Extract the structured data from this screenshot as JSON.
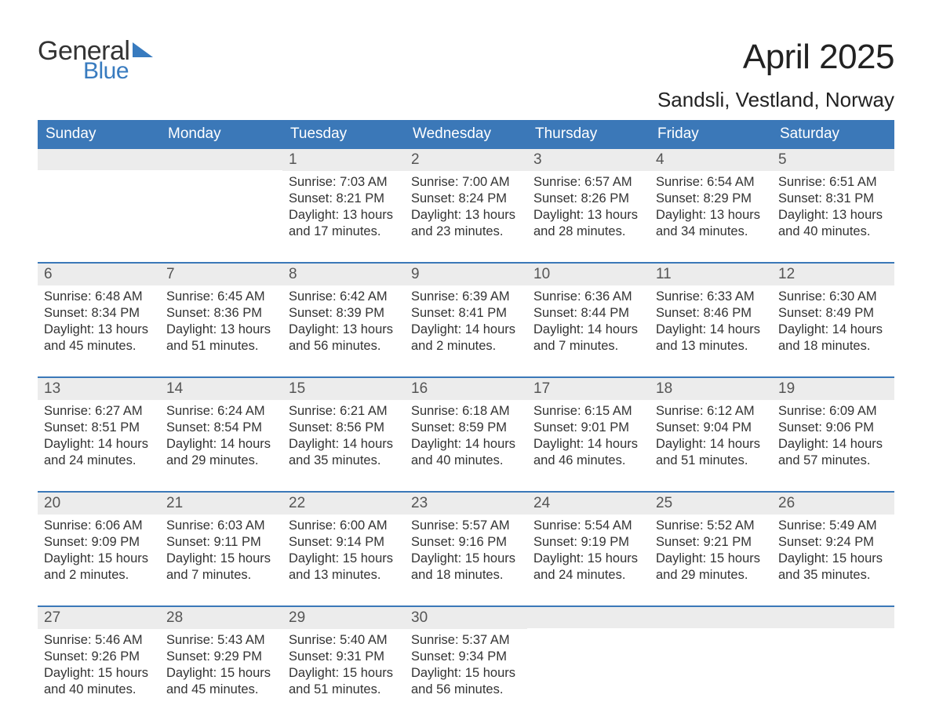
{
  "colors": {
    "header_bg": "#3b78b8",
    "header_text": "#ffffff",
    "daynum_bg": "#ececec",
    "body_text": "#333333",
    "week_border": "#3b78b8",
    "logo_blue": "#387bbf",
    "logo_dark": "#333333",
    "page_bg": "#ffffff"
  },
  "typography": {
    "month_title_fontsize": 44,
    "location_fontsize": 26,
    "weekday_fontsize": 19,
    "daynum_fontsize": 19,
    "body_fontsize": 16.5,
    "font_family": "Arial"
  },
  "logo": {
    "line1": "General",
    "line2": "Blue"
  },
  "title": "April 2025",
  "location": "Sandsli, Vestland, Norway",
  "weekdays": [
    "Sunday",
    "Monday",
    "Tuesday",
    "Wednesday",
    "Thursday",
    "Friday",
    "Saturday"
  ],
  "labels": {
    "sunrise": "Sunrise:",
    "sunset": "Sunset:",
    "daylight": "Daylight:",
    "hours": "hours",
    "and": "and",
    "minutes": "minutes."
  },
  "weeks": [
    [
      null,
      null,
      {
        "n": "1",
        "sunrise": "7:03 AM",
        "sunset": "8:21 PM",
        "dl_h": 13,
        "dl_m": 17
      },
      {
        "n": "2",
        "sunrise": "7:00 AM",
        "sunset": "8:24 PM",
        "dl_h": 13,
        "dl_m": 23
      },
      {
        "n": "3",
        "sunrise": "6:57 AM",
        "sunset": "8:26 PM",
        "dl_h": 13,
        "dl_m": 28
      },
      {
        "n": "4",
        "sunrise": "6:54 AM",
        "sunset": "8:29 PM",
        "dl_h": 13,
        "dl_m": 34
      },
      {
        "n": "5",
        "sunrise": "6:51 AM",
        "sunset": "8:31 PM",
        "dl_h": 13,
        "dl_m": 40
      }
    ],
    [
      {
        "n": "6",
        "sunrise": "6:48 AM",
        "sunset": "8:34 PM",
        "dl_h": 13,
        "dl_m": 45
      },
      {
        "n": "7",
        "sunrise": "6:45 AM",
        "sunset": "8:36 PM",
        "dl_h": 13,
        "dl_m": 51
      },
      {
        "n": "8",
        "sunrise": "6:42 AM",
        "sunset": "8:39 PM",
        "dl_h": 13,
        "dl_m": 56
      },
      {
        "n": "9",
        "sunrise": "6:39 AM",
        "sunset": "8:41 PM",
        "dl_h": 14,
        "dl_m": 2
      },
      {
        "n": "10",
        "sunrise": "6:36 AM",
        "sunset": "8:44 PM",
        "dl_h": 14,
        "dl_m": 7
      },
      {
        "n": "11",
        "sunrise": "6:33 AM",
        "sunset": "8:46 PM",
        "dl_h": 14,
        "dl_m": 13
      },
      {
        "n": "12",
        "sunrise": "6:30 AM",
        "sunset": "8:49 PM",
        "dl_h": 14,
        "dl_m": 18
      }
    ],
    [
      {
        "n": "13",
        "sunrise": "6:27 AM",
        "sunset": "8:51 PM",
        "dl_h": 14,
        "dl_m": 24
      },
      {
        "n": "14",
        "sunrise": "6:24 AM",
        "sunset": "8:54 PM",
        "dl_h": 14,
        "dl_m": 29
      },
      {
        "n": "15",
        "sunrise": "6:21 AM",
        "sunset": "8:56 PM",
        "dl_h": 14,
        "dl_m": 35
      },
      {
        "n": "16",
        "sunrise": "6:18 AM",
        "sunset": "8:59 PM",
        "dl_h": 14,
        "dl_m": 40
      },
      {
        "n": "17",
        "sunrise": "6:15 AM",
        "sunset": "9:01 PM",
        "dl_h": 14,
        "dl_m": 46
      },
      {
        "n": "18",
        "sunrise": "6:12 AM",
        "sunset": "9:04 PM",
        "dl_h": 14,
        "dl_m": 51
      },
      {
        "n": "19",
        "sunrise": "6:09 AM",
        "sunset": "9:06 PM",
        "dl_h": 14,
        "dl_m": 57
      }
    ],
    [
      {
        "n": "20",
        "sunrise": "6:06 AM",
        "sunset": "9:09 PM",
        "dl_h": 15,
        "dl_m": 2
      },
      {
        "n": "21",
        "sunrise": "6:03 AM",
        "sunset": "9:11 PM",
        "dl_h": 15,
        "dl_m": 7
      },
      {
        "n": "22",
        "sunrise": "6:00 AM",
        "sunset": "9:14 PM",
        "dl_h": 15,
        "dl_m": 13
      },
      {
        "n": "23",
        "sunrise": "5:57 AM",
        "sunset": "9:16 PM",
        "dl_h": 15,
        "dl_m": 18
      },
      {
        "n": "24",
        "sunrise": "5:54 AM",
        "sunset": "9:19 PM",
        "dl_h": 15,
        "dl_m": 24
      },
      {
        "n": "25",
        "sunrise": "5:52 AM",
        "sunset": "9:21 PM",
        "dl_h": 15,
        "dl_m": 29
      },
      {
        "n": "26",
        "sunrise": "5:49 AM",
        "sunset": "9:24 PM",
        "dl_h": 15,
        "dl_m": 35
      }
    ],
    [
      {
        "n": "27",
        "sunrise": "5:46 AM",
        "sunset": "9:26 PM",
        "dl_h": 15,
        "dl_m": 40
      },
      {
        "n": "28",
        "sunrise": "5:43 AM",
        "sunset": "9:29 PM",
        "dl_h": 15,
        "dl_m": 45
      },
      {
        "n": "29",
        "sunrise": "5:40 AM",
        "sunset": "9:31 PM",
        "dl_h": 15,
        "dl_m": 51
      },
      {
        "n": "30",
        "sunrise": "5:37 AM",
        "sunset": "9:34 PM",
        "dl_h": 15,
        "dl_m": 56
      },
      null,
      null,
      null
    ]
  ]
}
